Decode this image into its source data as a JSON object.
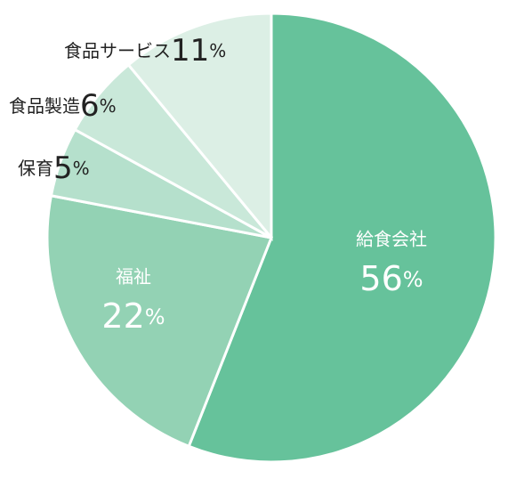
{
  "chart_data": {
    "type": "pie",
    "categories": [
      "給食会社",
      "福祉",
      "保育",
      "食品製造",
      "食品サービス"
    ],
    "values": [
      56,
      22,
      5,
      6,
      11
    ],
    "value_labels": [
      "56%",
      "22%",
      "5%",
      "6%",
      "11%"
    ],
    "colors": [
      "#66c29b",
      "#93d2b4",
      "#b5e0cc",
      "#c9e8d9",
      "#dcefe5"
    ]
  }
}
